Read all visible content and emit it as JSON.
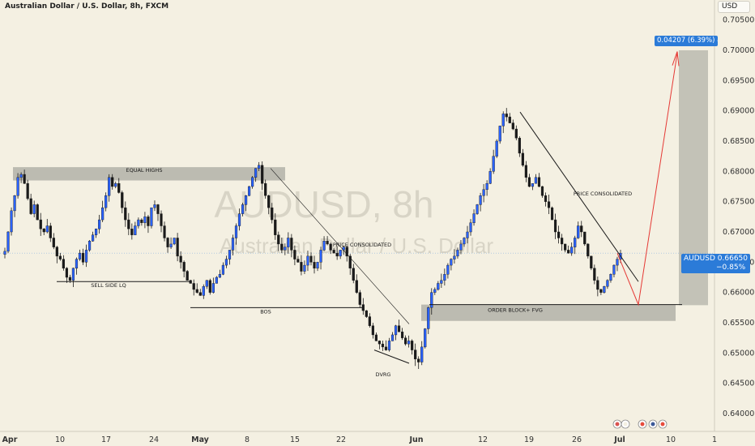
{
  "header": {
    "title": "Australian Dollar / U.S. Dollar, 8h, FXCM"
  },
  "watermark": {
    "symbol": "AUDUSD, 8h",
    "description": "Australian Dollar / U.S. Dollar"
  },
  "price_axis": {
    "currency_button": "USD",
    "labels": [
      "0.70500",
      "0.70000",
      "0.69500",
      "0.69000",
      "0.68500",
      "0.68000",
      "0.67500",
      "0.67000",
      "0.66500",
      "0.66000",
      "0.65500",
      "0.65000",
      "0.64500",
      "0.64000"
    ],
    "last_price": {
      "symbol": "AUDUSD",
      "value": "0.66650",
      "change": "−0.85%"
    }
  },
  "time_axis": {
    "labels": [
      {
        "text": "Apr",
        "bold": true
      },
      {
        "text": "10",
        "bold": false
      },
      {
        "text": "17",
        "bold": false
      },
      {
        "text": "24",
        "bold": false
      },
      {
        "text": "May",
        "bold": true
      },
      {
        "text": "8",
        "bold": false
      },
      {
        "text": "15",
        "bold": false
      },
      {
        "text": "22",
        "bold": false
      },
      {
        "text": "Jun",
        "bold": true
      },
      {
        "text": "12",
        "bold": false
      },
      {
        "text": "19",
        "bold": false
      },
      {
        "text": "26",
        "bold": false
      },
      {
        "text": "Jul",
        "bold": true
      },
      {
        "text": "10",
        "bold": false
      },
      {
        "text": "1",
        "bold": false
      }
    ]
  },
  "annotations": {
    "equal_highs": "EQUAL HIGHS",
    "sell_side_lq": "SELL SIDE LQ",
    "bos": "BOS",
    "price_consolidated_1": "PRICE CONSOLIDATED",
    "price_consolidated_2": "PRICE CONSOLIDATED",
    "dvrg": "DVRG",
    "order_block": "ORDER BLOCK+ FVG",
    "range_tag": "0.04207 (6.39%) 42"
  },
  "colors": {
    "background": "#f4f0e2",
    "bull": "#2962ff",
    "bear": "#1a1a1a",
    "zone": "#a9a9a0",
    "projection": "#e53935",
    "accent": "#2b7bd8"
  },
  "chart_data": {
    "type": "candlestick",
    "symbol": "AUDUSD",
    "timeframe": "8h",
    "source": "FXCM",
    "ylim": [
      0.6375,
      0.7075
    ],
    "yticks": [
      0.705,
      0.7,
      0.695,
      0.69,
      0.685,
      0.68,
      0.675,
      0.67,
      0.665,
      0.66,
      0.655,
      0.65,
      0.645,
      0.64
    ],
    "last_price": 0.6665,
    "ohlc_close_path": [
      0.6668,
      0.67,
      0.6735,
      0.676,
      0.679,
      0.6795,
      0.678,
      0.6755,
      0.673,
      0.6745,
      0.672,
      0.6705,
      0.67,
      0.671,
      0.669,
      0.6675,
      0.666,
      0.6655,
      0.664,
      0.6625,
      0.662,
      0.664,
      0.6655,
      0.6665,
      0.665,
      0.667,
      0.6685,
      0.6695,
      0.6705,
      0.672,
      0.674,
      0.676,
      0.679,
      0.6775,
      0.678,
      0.6765,
      0.674,
      0.672,
      0.6705,
      0.6695,
      0.671,
      0.672,
      0.6715,
      0.6725,
      0.671,
      0.674,
      0.6745,
      0.673,
      0.671,
      0.669,
      0.6675,
      0.668,
      0.669,
      0.666,
      0.665,
      0.6635,
      0.662,
      0.6615,
      0.6605,
      0.66,
      0.6595,
      0.661,
      0.662,
      0.66,
      0.6615,
      0.6625,
      0.663,
      0.6645,
      0.6655,
      0.667,
      0.669,
      0.671,
      0.673,
      0.6745,
      0.676,
      0.6775,
      0.679,
      0.6805,
      0.681,
      0.678,
      0.676,
      0.674,
      0.672,
      0.6695,
      0.668,
      0.667,
      0.6675,
      0.669,
      0.667,
      0.6655,
      0.665,
      0.6635,
      0.6645,
      0.666,
      0.665,
      0.664,
      0.665,
      0.667,
      0.6685,
      0.668,
      0.667,
      0.6665,
      0.666,
      0.667,
      0.6675,
      0.666,
      0.664,
      0.662,
      0.66,
      0.658,
      0.657,
      0.656,
      0.6545,
      0.653,
      0.652,
      0.6515,
      0.651,
      0.6505,
      0.652,
      0.653,
      0.6545,
      0.6535,
      0.6525,
      0.6515,
      0.652,
      0.6505,
      0.649,
      0.6485,
      0.651,
      0.654,
      0.6575,
      0.66,
      0.6605,
      0.6615,
      0.662,
      0.663,
      0.6645,
      0.6655,
      0.666,
      0.667,
      0.668,
      0.669,
      0.67,
      0.6715,
      0.673,
      0.6745,
      0.676,
      0.677,
      0.678,
      0.68,
      0.6825,
      0.685,
      0.6875,
      0.6895,
      0.689,
      0.688,
      0.687,
      0.6855,
      0.683,
      0.681,
      0.679,
      0.6775,
      0.678,
      0.679,
      0.6775,
      0.676,
      0.675,
      0.674,
      0.672,
      0.67,
      0.669,
      0.668,
      0.667,
      0.6665,
      0.6675,
      0.669,
      0.671,
      0.67,
      0.668,
      0.666,
      0.664,
      0.662,
      0.6605,
      0.66,
      0.661,
      0.662,
      0.663,
      0.6645,
      0.6655,
      0.6665
    ],
    "zones": [
      {
        "label": "EQUAL HIGHS",
        "from": 0.6807,
        "to": 0.6785
      },
      {
        "label": "ORDER BLOCK+ FVG",
        "from": 0.658,
        "to": 0.6553
      },
      {
        "label": "projection range",
        "from": 0.7,
        "to": 0.6579
      }
    ],
    "levels": [
      {
        "label": "SELL SIDE LQ",
        "value": 0.6618
      },
      {
        "label": "BOS",
        "value": 0.6575
      }
    ],
    "projection": {
      "path": [
        0.6665,
        0.6615,
        0.658,
        0.7
      ]
    }
  }
}
